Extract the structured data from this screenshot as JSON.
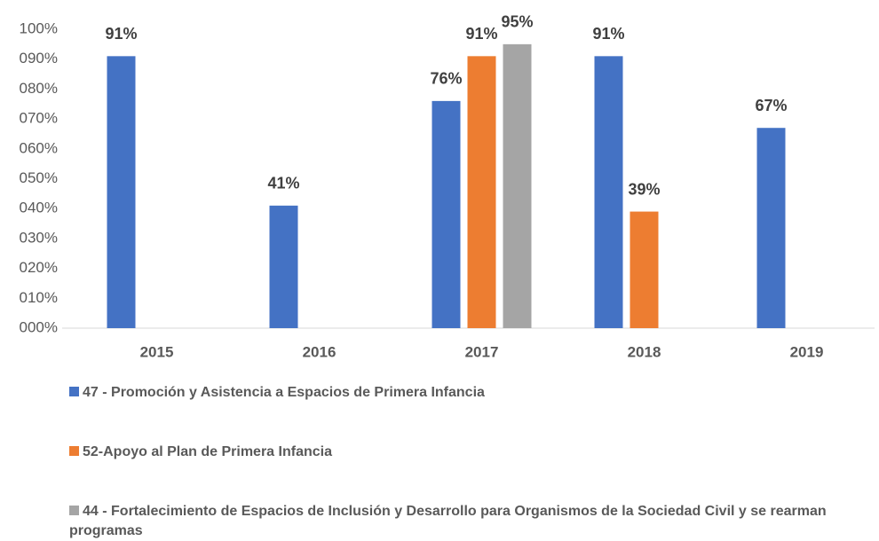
{
  "chart_data": {
    "type": "bar",
    "categories": [
      "2015",
      "2016",
      "2017",
      "2018",
      "2019"
    ],
    "series": [
      {
        "name": "47 - Promoción y Asistencia a Espacios de Primera Infancia",
        "color": "#4472c4",
        "values": [
          91,
          41,
          76,
          91,
          67
        ],
        "value_labels": [
          "91%",
          "41%",
          "76%",
          "91%",
          "67%"
        ]
      },
      {
        "name": "52-Apoyo al Plan de Primera Infancia",
        "color": "#ed7d31",
        "values": [
          null,
          null,
          91,
          39,
          null
        ],
        "value_labels": [
          null,
          null,
          "91%",
          "39%",
          null
        ]
      },
      {
        "name": "44 - Fortalecimiento de Espacios de Inclusión y Desarrollo para Organismos de la Sociedad Civil  y se rearman programas",
        "color": "#a5a5a5",
        "values": [
          null,
          null,
          95,
          null,
          null
        ],
        "value_labels": [
          null,
          null,
          "95%",
          null,
          null
        ]
      }
    ],
    "ylim": [
      0,
      100
    ],
    "yticks": [
      {
        "value": 0,
        "label": "000%"
      },
      {
        "value": 10,
        "label": "010%"
      },
      {
        "value": 20,
        "label": "020%"
      },
      {
        "value": 30,
        "label": "030%"
      },
      {
        "value": 40,
        "label": "040%"
      },
      {
        "value": 50,
        "label": "050%"
      },
      {
        "value": 60,
        "label": "060%"
      },
      {
        "value": 70,
        "label": "070%"
      },
      {
        "value": 80,
        "label": "080%"
      },
      {
        "value": 90,
        "label": "090%"
      },
      {
        "value": 100,
        "label": "100%"
      }
    ],
    "grid": false
  }
}
